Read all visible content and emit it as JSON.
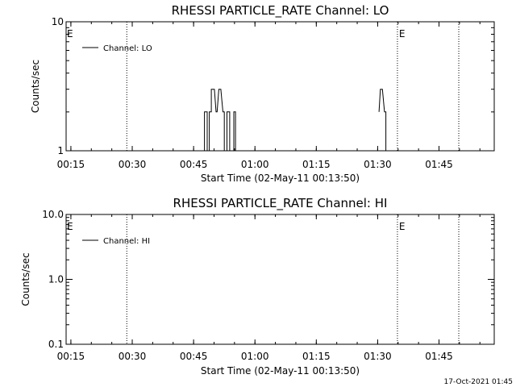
{
  "footer": {
    "timestamp": "17-Oct-2021 01:45"
  },
  "chart_data": [
    {
      "type": "line",
      "title": "RHESSI PARTICLE_RATE Channel: LO",
      "xlabel": "Start Time (02-May-11 00:13:50)",
      "ylabel": "Counts/sec",
      "y_scale": "log",
      "ylim": [
        1,
        10
      ],
      "xlim": [
        "00:13:50",
        "01:58:30"
      ],
      "x_ticks": [
        "00:15",
        "00:30",
        "00:45",
        "01:00",
        "01:15",
        "01:30",
        "01:45"
      ],
      "y_ticks": [
        {
          "value": 1,
          "label": "1"
        },
        {
          "value": 10,
          "label": "10"
        }
      ],
      "legend": {
        "placement": "top-left",
        "entries": [
          "Channel: LO"
        ]
      },
      "series": [
        {
          "name": "Channel: LO",
          "segments": [
            [
              [
                "00:47:40",
                1
              ],
              [
                "00:47:40",
                2
              ],
              [
                "00:48:20",
                2
              ],
              [
                "00:48:20",
                1
              ]
            ],
            [
              [
                "00:48:50",
                1
              ],
              [
                "00:48:50",
                2
              ],
              [
                "00:49:20",
                2
              ],
              [
                "00:49:20",
                3
              ],
              [
                "00:49:50",
                3
              ],
              [
                "00:50:05",
                3
              ],
              [
                "00:50:30",
                2
              ],
              [
                "00:50:45",
                2
              ],
              [
                "00:51:10",
                3
              ],
              [
                "00:51:40",
                3
              ],
              [
                "00:52:10",
                2
              ],
              [
                "00:52:30",
                2
              ],
              [
                "00:52:30",
                1
              ]
            ],
            [
              [
                "00:53:10",
                1
              ],
              [
                "00:53:10",
                2
              ],
              [
                "00:53:50",
                2
              ],
              [
                "00:53:50",
                1
              ]
            ],
            [
              [
                "00:54:50",
                1
              ],
              [
                "00:54:50",
                2
              ],
              [
                "00:55:15",
                2
              ],
              [
                "00:55:15",
                1
              ]
            ],
            [
              [
                "01:30:20",
                2
              ],
              [
                "01:30:40",
                3
              ],
              [
                "01:31:10",
                3
              ],
              [
                "01:31:40",
                2
              ],
              [
                "01:32:00",
                2
              ],
              [
                "01:32:00",
                1
              ]
            ]
          ]
        }
      ],
      "markers": [
        {
          "time": "00:28:40",
          "label": ""
        },
        {
          "time": "01:34:50",
          "label": "E"
        },
        {
          "time": "01:49:50",
          "label": ""
        }
      ],
      "corner_label": "E"
    },
    {
      "type": "line",
      "title": "RHESSI PARTICLE_RATE Channel: HI",
      "xlabel": "Start Time (02-May-11 00:13:50)",
      "ylabel": "Counts/sec",
      "y_scale": "log",
      "ylim": [
        0.1,
        10
      ],
      "xlim": [
        "00:13:50",
        "01:58:30"
      ],
      "x_ticks": [
        "00:15",
        "00:30",
        "00:45",
        "01:00",
        "01:15",
        "01:30",
        "01:45"
      ],
      "y_ticks": [
        {
          "value": 0.1,
          "label": "0.1"
        },
        {
          "value": 1,
          "label": "1.0"
        },
        {
          "value": 10,
          "label": "10.0"
        }
      ],
      "legend": {
        "placement": "top-left",
        "entries": [
          "Channel: HI"
        ]
      },
      "series": [
        {
          "name": "Channel: HI",
          "segments": []
        }
      ],
      "markers": [
        {
          "time": "00:28:40",
          "label": ""
        },
        {
          "time": "01:34:50",
          "label": "E"
        },
        {
          "time": "01:49:50",
          "label": ""
        }
      ],
      "corner_label": "E"
    }
  ]
}
